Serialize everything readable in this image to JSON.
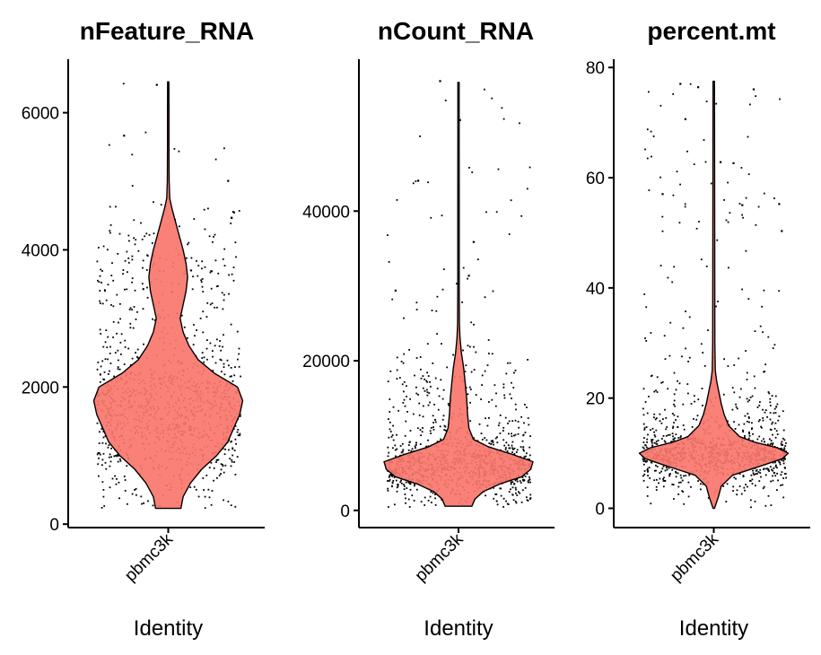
{
  "chart_data": [
    {
      "type": "violin",
      "title": "nFeature_RNA",
      "xlabel": "Identity",
      "ylabel": "",
      "categories": [
        "pbmc3k"
      ],
      "ylim": [
        -50,
        6780
      ],
      "yticks": [
        0,
        2000,
        4000,
        6000
      ],
      "range": [
        230,
        6450
      ],
      "fill_color": "#F8766D",
      "point_color": "#000000",
      "density": [
        [
          230,
          0.17
        ],
        [
          400,
          0.2
        ],
        [
          600,
          0.3
        ],
        [
          800,
          0.45
        ],
        [
          1000,
          0.65
        ],
        [
          1200,
          0.8
        ],
        [
          1400,
          0.88
        ],
        [
          1600,
          0.96
        ],
        [
          1800,
          1.0
        ],
        [
          2000,
          0.93
        ],
        [
          2200,
          0.62
        ],
        [
          2400,
          0.4
        ],
        [
          2600,
          0.28
        ],
        [
          2800,
          0.2
        ],
        [
          3000,
          0.16
        ],
        [
          3200,
          0.2
        ],
        [
          3400,
          0.24
        ],
        [
          3600,
          0.26
        ],
        [
          3800,
          0.24
        ],
        [
          4000,
          0.2
        ],
        [
          4200,
          0.15
        ],
        [
          4400,
          0.1
        ],
        [
          4600,
          0.05
        ],
        [
          4750,
          0.02
        ],
        [
          5000,
          0.012
        ],
        [
          5500,
          0.01
        ],
        [
          6000,
          0.01
        ],
        [
          6450,
          0.008
        ]
      ],
      "outliers": [
        6420,
        5680,
        5020,
        4560,
        4480
      ]
    },
    {
      "type": "violin",
      "title": "nCount_RNA",
      "xlabel": "Identity",
      "ylabel": "",
      "categories": [
        "pbmc3k"
      ],
      "ylim": [
        -2300,
        60300
      ],
      "yticks": [
        0,
        20000,
        40000
      ],
      "range": [
        550,
        57200
      ],
      "fill_color": "#F8766D",
      "point_color": "#000000",
      "density": [
        [
          550,
          0.18
        ],
        [
          1500,
          0.22
        ],
        [
          2500,
          0.33
        ],
        [
          3500,
          0.55
        ],
        [
          4500,
          0.85
        ],
        [
          5500,
          0.97
        ],
        [
          6500,
          1.0
        ],
        [
          7500,
          0.72
        ],
        [
          8500,
          0.4
        ],
        [
          9500,
          0.2
        ],
        [
          11000,
          0.14
        ],
        [
          13000,
          0.12
        ],
        [
          15000,
          0.11
        ],
        [
          17000,
          0.09
        ],
        [
          19000,
          0.07
        ],
        [
          21000,
          0.04
        ],
        [
          23000,
          0.02
        ],
        [
          25000,
          0.012
        ],
        [
          30000,
          0.01
        ],
        [
          40000,
          0.01
        ],
        [
          50000,
          0.008
        ],
        [
          57200,
          0.008
        ]
      ],
      "outliers": [
        57500,
        52300,
        44200,
        36000,
        31500,
        29500
      ]
    },
    {
      "type": "violin",
      "title": "percent.mt",
      "xlabel": "Identity",
      "ylabel": "",
      "categories": [
        "pbmc3k"
      ],
      "ylim": [
        -3.5,
        81.5
      ],
      "yticks": [
        0,
        20,
        40,
        60,
        80
      ],
      "range": [
        0,
        77.5
      ],
      "fill_color": "#F8766D",
      "point_color": "#000000",
      "density": [
        [
          0,
          0.01
        ],
        [
          2,
          0.06
        ],
        [
          4,
          0.1
        ],
        [
          6,
          0.25
        ],
        [
          8,
          0.7
        ],
        [
          9,
          0.92
        ],
        [
          10,
          1.0
        ],
        [
          11,
          0.85
        ],
        [
          12,
          0.55
        ],
        [
          13,
          0.35
        ],
        [
          15,
          0.2
        ],
        [
          17,
          0.14
        ],
        [
          19,
          0.1
        ],
        [
          21,
          0.07
        ],
        [
          23,
          0.04
        ],
        [
          25,
          0.02
        ],
        [
          30,
          0.015
        ],
        [
          77.5,
          0.01
        ]
      ],
      "outliers": [
        77.2,
        76.6,
        76.2,
        70.8,
        63.0,
        62.8,
        57.2,
        55.4,
        55.2,
        50.5
      ]
    }
  ]
}
